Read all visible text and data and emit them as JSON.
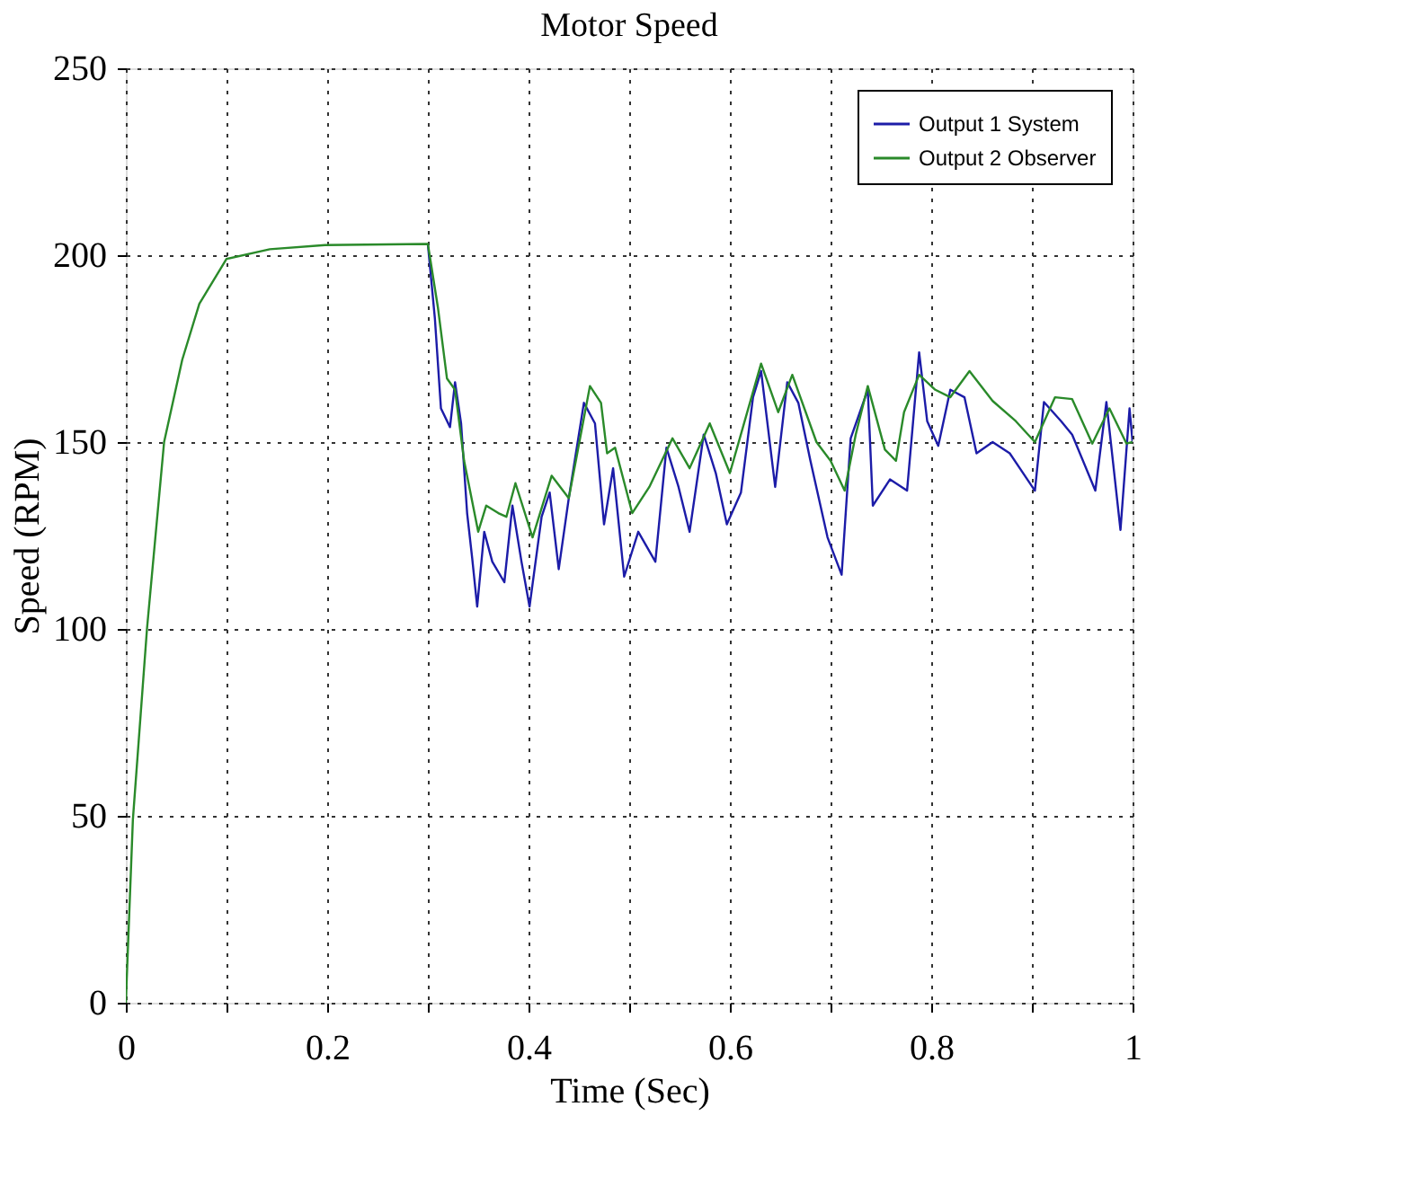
{
  "chart_data": {
    "type": "line",
    "title": "Motor Speed",
    "xlabel": "Time (Sec)",
    "ylabel": "Speed (RPM)",
    "xlim": [
      0,
      1
    ],
    "ylim": [
      0,
      250
    ],
    "xticks": [
      0,
      {
        "value": 0.1,
        "label": null
      },
      0.2,
      {
        "value": 0.3,
        "label": null
      },
      0.4,
      {
        "value": 0.5,
        "label": null
      },
      0.6,
      {
        "value": 0.7,
        "label": null
      },
      0.8,
      {
        "value": 0.9,
        "label": null
      },
      1
    ],
    "yticks": [
      0,
      50,
      100,
      150,
      200,
      250
    ],
    "grid": true,
    "legend": "top right",
    "line_style": "solid",
    "marker": "none",
    "series": [
      {
        "name": "Output 1 System",
        "color": "#1c1ca8",
        "x": [
          0.3,
          0.307,
          0.313,
          0.322,
          0.327,
          0.333,
          0.339,
          0.344,
          0.349,
          0.356,
          0.364,
          0.376,
          0.384,
          0.393,
          0.401,
          0.413,
          0.421,
          0.43,
          0.44,
          0.455,
          0.466,
          0.475,
          0.484,
          0.495,
          0.509,
          0.526,
          0.537,
          0.549,
          0.56,
          0.574,
          0.586,
          0.597,
          0.611,
          0.623,
          0.631,
          0.645,
          0.657,
          0.668,
          0.68,
          0.697,
          0.711,
          0.72,
          0.737,
          0.742,
          0.759,
          0.776,
          0.788,
          0.796,
          0.807,
          0.819,
          0.833,
          0.845,
          0.861,
          0.878,
          0.903,
          0.912,
          0.929,
          0.94,
          0.963,
          0.974,
          0.988,
          0.997,
          1.0
        ],
        "values": [
          203,
          183,
          159,
          154,
          166,
          155,
          131,
          119,
          106,
          126,
          118,
          112.5,
          133,
          118,
          106,
          130,
          136.5,
          116,
          135,
          160.5,
          155,
          128,
          143,
          114,
          126,
          118,
          148.5,
          138,
          126,
          152,
          141.7,
          128,
          136.5,
          162,
          169,
          138,
          166,
          160.5,
          145,
          124.5,
          114.5,
          151,
          164,
          133,
          140,
          137,
          174,
          155.6,
          149,
          164,
          162,
          147,
          150,
          147,
          137,
          160.7,
          155.6,
          152,
          137,
          160.7,
          126.5,
          159,
          150
        ]
      },
      {
        "name": "Output 2 Observer",
        "color": "#2a8a2a",
        "x": [
          0,
          0.007,
          0.021,
          0.038,
          0.056,
          0.073,
          0.1,
          0.143,
          0.198,
          0.3,
          0.31,
          0.319,
          0.327,
          0.336,
          0.35,
          0.358,
          0.37,
          0.378,
          0.387,
          0.404,
          0.423,
          0.44,
          0.461,
          0.472,
          0.478,
          0.486,
          0.503,
          0.52,
          0.543,
          0.56,
          0.58,
          0.6,
          0.631,
          0.648,
          0.662,
          0.686,
          0.7,
          0.714,
          0.725,
          0.737,
          0.754,
          0.765,
          0.773,
          0.788,
          0.804,
          0.819,
          0.838,
          0.861,
          0.884,
          0.903,
          0.923,
          0.94,
          0.96,
          0.977,
          0.994,
          1.0
        ],
        "values": [
          0,
          49,
          100,
          150,
          172,
          187,
          199,
          201.6,
          202.7,
          203,
          186,
          167,
          164,
          145,
          126,
          133,
          131,
          130,
          139,
          124.5,
          141,
          135,
          165,
          160.5,
          147,
          148.5,
          131,
          138,
          151,
          143,
          155,
          141.7,
          171,
          158,
          168,
          150,
          145,
          137,
          152,
          165,
          148,
          145,
          158,
          168,
          164,
          162,
          169,
          161,
          155.6,
          150,
          162,
          161.5,
          149.6,
          159,
          149.6,
          150
        ]
      }
    ]
  }
}
